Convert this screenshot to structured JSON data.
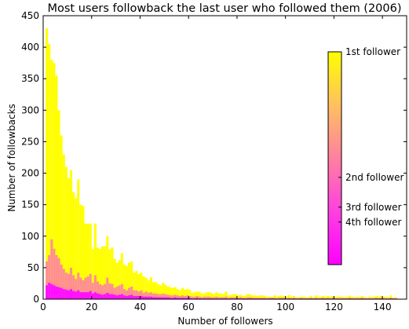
{
  "chart_data": {
    "type": "bar",
    "title": "Most users followback the last user who followed them (2006)",
    "xlabel": "Number of followers",
    "ylabel": "Number of followbacks",
    "xlim": [
      0,
      150
    ],
    "ylim": [
      0,
      450
    ],
    "x_ticks": [
      0,
      20,
      40,
      60,
      80,
      100,
      120,
      140
    ],
    "y_ticks": [
      0,
      50,
      100,
      150,
      200,
      250,
      300,
      350,
      400,
      450
    ],
    "bin_width": 1,
    "layer_colors": [
      "#ffff00",
      "#ff9090",
      "#ff60d8",
      "#ff10ff"
    ],
    "series": [
      {
        "name": "1st follower",
        "values": [
          0,
          430,
          405,
          380,
          375,
          355,
          300,
          260,
          230,
          210,
          192,
          205,
          170,
          160,
          190,
          150,
          148,
          120,
          120,
          120,
          80,
          120,
          82,
          80,
          84,
          84,
          100,
          79,
          82,
          64,
          58,
          62,
          73,
          55,
          53,
          58,
          60,
          42,
          45,
          40,
          42,
          36,
          34,
          30,
          35,
          27,
          27,
          24,
          22,
          26,
          23,
          20,
          19,
          18,
          19,
          16,
          14,
          18,
          15,
          16,
          15,
          10,
          11,
          12,
          12,
          9,
          9,
          11,
          11,
          10,
          8,
          11,
          9,
          9,
          8,
          12,
          6,
          7,
          8,
          8,
          6,
          7,
          5,
          6,
          8,
          7,
          6,
          6,
          5,
          6,
          6,
          5,
          4,
          4,
          4,
          6,
          4,
          5,
          6,
          5,
          4,
          6,
          4,
          5,
          3,
          3,
          4,
          4,
          3,
          3,
          5,
          3,
          6,
          4,
          4,
          5,
          4,
          5,
          4,
          5,
          3,
          4,
          4,
          4,
          3,
          4,
          5,
          4,
          3,
          4,
          3,
          5,
          4,
          2,
          4,
          3,
          4,
          5,
          4,
          5,
          3,
          4,
          3,
          6,
          2,
          3
        ]
      },
      {
        "name": "2nd follower",
        "values": [
          0,
          60,
          70,
          95,
          80,
          70,
          65,
          55,
          48,
          42,
          40,
          50,
          38,
          32,
          42,
          34,
          30,
          34,
          36,
          40,
          26,
          38,
          28,
          24,
          22,
          24,
          34,
          25,
          24,
          18,
          20,
          22,
          24,
          16,
          14,
          18,
          20,
          14,
          14,
          12,
          14,
          10,
          12,
          10,
          11,
          9,
          9,
          8,
          8,
          9,
          8,
          7,
          6,
          6,
          7,
          6,
          5,
          6,
          5,
          6,
          5,
          4,
          4,
          5,
          4,
          3,
          4,
          4,
          4,
          3,
          3,
          4,
          3,
          3,
          3,
          4,
          2,
          3,
          3,
          3,
          2,
          3,
          2,
          2,
          3,
          3,
          2,
          2,
          2,
          2,
          2,
          2,
          1,
          2,
          2,
          2,
          1,
          2,
          2,
          2,
          1,
          2,
          1,
          2,
          1,
          1,
          2,
          1,
          1,
          1,
          2,
          1,
          2,
          1,
          1,
          2,
          1,
          2,
          1,
          2,
          1,
          1,
          1,
          1,
          1,
          1,
          2,
          1,
          1,
          1,
          1,
          2,
          1,
          1,
          1,
          1,
          1,
          2,
          1,
          2,
          1,
          1,
          1,
          2,
          1,
          1
        ]
      },
      {
        "name": "3rd follower",
        "values": [
          0,
          20,
          24,
          22,
          20,
          18,
          17,
          16,
          14,
          13,
          12,
          14,
          12,
          11,
          12,
          10,
          10,
          10,
          10,
          12,
          8,
          10,
          8,
          7,
          6,
          7,
          9,
          7,
          7,
          6,
          5,
          6,
          7,
          5,
          4,
          5,
          6,
          4,
          4,
          4,
          4,
          3,
          3,
          3,
          3,
          3,
          3,
          2,
          2,
          3,
          2,
          2,
          2,
          2,
          2,
          2,
          2,
          2,
          2,
          2,
          1,
          1,
          1,
          2,
          1,
          1,
          1,
          1,
          1,
          1,
          1,
          1,
          1,
          1,
          1,
          1,
          1,
          1,
          1,
          1,
          1,
          1,
          1,
          1,
          1,
          1,
          1,
          1,
          1,
          1,
          1,
          1,
          0,
          1,
          1,
          1,
          0,
          1,
          1,
          1,
          0,
          1,
          0,
          1,
          0,
          0,
          1,
          0,
          0,
          0,
          1,
          0,
          1,
          0,
          0,
          1,
          0,
          1,
          0,
          1,
          0,
          0,
          0,
          0,
          0,
          0,
          1,
          0,
          0,
          0,
          0,
          1,
          0,
          0,
          0,
          0,
          0,
          1,
          0,
          1,
          0,
          0,
          0,
          1,
          0,
          0
        ]
      },
      {
        "name": "4th follower",
        "values": [
          0,
          22,
          26,
          24,
          22,
          20,
          19,
          18,
          16,
          15,
          14,
          16,
          13,
          12,
          14,
          11,
          11,
          11,
          11,
          13,
          9,
          11,
          9,
          8,
          7,
          8,
          10,
          8,
          8,
          7,
          6,
          7,
          8,
          6,
          5,
          6,
          7,
          5,
          5,
          5,
          5,
          4,
          4,
          4,
          4,
          3,
          3,
          3,
          3,
          3,
          3,
          3,
          2,
          2,
          3,
          2,
          2,
          2,
          2,
          2,
          2,
          1,
          1,
          2,
          1,
          1,
          1,
          1,
          1,
          1,
          1,
          1,
          1,
          1,
          1,
          1,
          1,
          1,
          1,
          1,
          1,
          1,
          1,
          1,
          1,
          1,
          1,
          1,
          1,
          1,
          1,
          1,
          1,
          1,
          1,
          1,
          1,
          1,
          1,
          1,
          1,
          1,
          1,
          1,
          1,
          1,
          1,
          1,
          1,
          1,
          1,
          1,
          1,
          1,
          1,
          1,
          1,
          1,
          1,
          1,
          1,
          1,
          1,
          1,
          1,
          1,
          1,
          1,
          1,
          1,
          1,
          1,
          1,
          1,
          1,
          1,
          1,
          1,
          1,
          1,
          1,
          1,
          1,
          1,
          1,
          1
        ]
      }
    ],
    "colorbar": {
      "labels": [
        "1st follower",
        "2nd follower",
        "3rd follower",
        "4th follower"
      ],
      "label_values": [
        1.0,
        0.41,
        0.27,
        0.2
      ],
      "gradient": [
        "#ff00ff",
        "#ff40e0",
        "#ff80a0",
        "#ffc060",
        "#ffff00"
      ]
    }
  }
}
